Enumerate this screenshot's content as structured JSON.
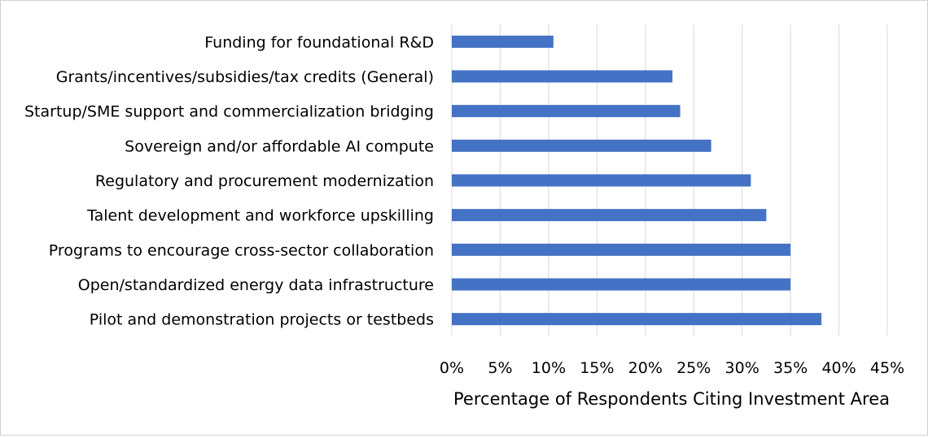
{
  "chart_data": {
    "type": "bar",
    "orientation": "horizontal",
    "categories": [
      "Funding for foundational R&D",
      "Grants/incentives/subsidies/tax credits (General)",
      "Startup/SME support and commercialization bridging",
      "Sovereign and/or affordable AI compute",
      "Regulatory and procurement modernization",
      "Talent development and workforce upskilling",
      "Programs to encourage cross-sector collaboration",
      "Open/standardized energy data infrastructure",
      "Pilot and demonstration projects or testbeds"
    ],
    "values": [
      10.5,
      22.8,
      23.6,
      26.8,
      30.9,
      32.5,
      35.0,
      35.0,
      38.2
    ],
    "xlim": [
      0,
      45
    ],
    "xticks": [
      "0%",
      "5%",
      "10%",
      "15%",
      "20%",
      "25%",
      "30%",
      "35%",
      "40%",
      "45%"
    ],
    "xlabel": "Percentage of Respondents Citing Investment Area",
    "ylabel": "",
    "title": "",
    "grid": "vertical",
    "bar_color": "#4472C4",
    "grid_color": "#d9d9d9"
  }
}
